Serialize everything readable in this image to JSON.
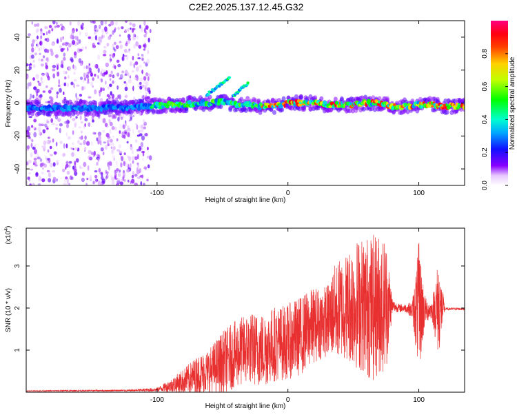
{
  "page": {
    "title": "C2E2.2025.137.12.45.G32"
  },
  "chart_data": [
    {
      "type": "heatmap",
      "xlabel": "Height of straight line (km)",
      "ylabel": "Frequency (Hz)",
      "xlim": [
        -200,
        135
      ],
      "ylim": [
        -50,
        50
      ],
      "xticks": [
        -100,
        0,
        100
      ],
      "yticks": [
        -40,
        -20,
        0,
        20,
        40
      ],
      "ridge": {
        "x": [
          -200,
          -180,
          -160,
          -140,
          -120,
          -105,
          -90,
          -80,
          -70,
          -60,
          -50,
          -40,
          -30,
          -20,
          -10,
          0,
          10,
          20,
          30,
          40,
          50,
          60,
          70,
          80,
          90,
          100,
          110,
          120,
          135
        ],
        "y": [
          -3,
          -3,
          -3,
          -3,
          -3,
          -2,
          -1,
          -1,
          0,
          0,
          1,
          -1,
          -1,
          -2,
          -2,
          0,
          0,
          0,
          -1,
          -1,
          -1,
          0,
          0,
          -2,
          -2,
          -1,
          -1,
          -2,
          -2
        ]
      },
      "branches": [
        {
          "x": [
            -62,
            -57,
            -52,
            -48,
            -44
          ],
          "y": [
            5,
            8,
            11,
            13,
            16
          ]
        },
        {
          "x": [
            -42,
            -38,
            -35,
            -32,
            -30
          ],
          "y": [
            4,
            7,
            9,
            11,
            12
          ]
        }
      ],
      "colorbar": {
        "label": "Normalized spectral amplitude",
        "range": [
          0,
          1
        ],
        "ticks": [
          0.0,
          0.2,
          0.4,
          0.6,
          0.8
        ]
      }
    },
    {
      "type": "line",
      "xlabel": "Height of straight line (km)",
      "ylabel": "SNR (10 * v/v)",
      "yscale_note": "(x10",
      "yscale_exp": "4",
      "yscale_close": ")",
      "xlim": [
        -200,
        135
      ],
      "ylim": [
        0,
        3.9
      ],
      "xticks": [
        -100,
        0,
        100
      ],
      "yticks": [
        1,
        2,
        3
      ],
      "color": "#e83030",
      "envelope": {
        "x": [
          -200,
          -120,
          -100,
          -90,
          -80,
          -70,
          -60,
          -50,
          -40,
          -30,
          -20,
          -10,
          0,
          10,
          20,
          30,
          35,
          40,
          45,
          50,
          55,
          60,
          65,
          70,
          75,
          80,
          85,
          90,
          95,
          100,
          105,
          110,
          115,
          120,
          135
        ],
        "mean": [
          0.03,
          0.04,
          0.06,
          0.15,
          0.25,
          0.4,
          0.5,
          0.7,
          0.9,
          1.05,
          1.0,
          1.15,
          1.2,
          1.35,
          1.6,
          1.7,
          1.9,
          2.0,
          2.05,
          2.1,
          2.1,
          2.05,
          2.0,
          2.1,
          2.1,
          2.05,
          2.0,
          2.0,
          1.95,
          2.0,
          1.95,
          1.95,
          2.0,
          1.98,
          1.98
        ],
        "spread": [
          0.01,
          0.02,
          0.05,
          0.15,
          0.3,
          0.45,
          0.55,
          0.75,
          0.8,
          0.85,
          0.9,
          0.9,
          0.9,
          0.95,
          0.9,
          0.85,
          1.1,
          1.2,
          1.3,
          1.5,
          1.6,
          1.7,
          1.75,
          1.7,
          1.6,
          0.15,
          0.1,
          0.1,
          0.2,
          1.6,
          0.3,
          0.2,
          1.2,
          0.03,
          0.03
        ]
      }
    }
  ]
}
